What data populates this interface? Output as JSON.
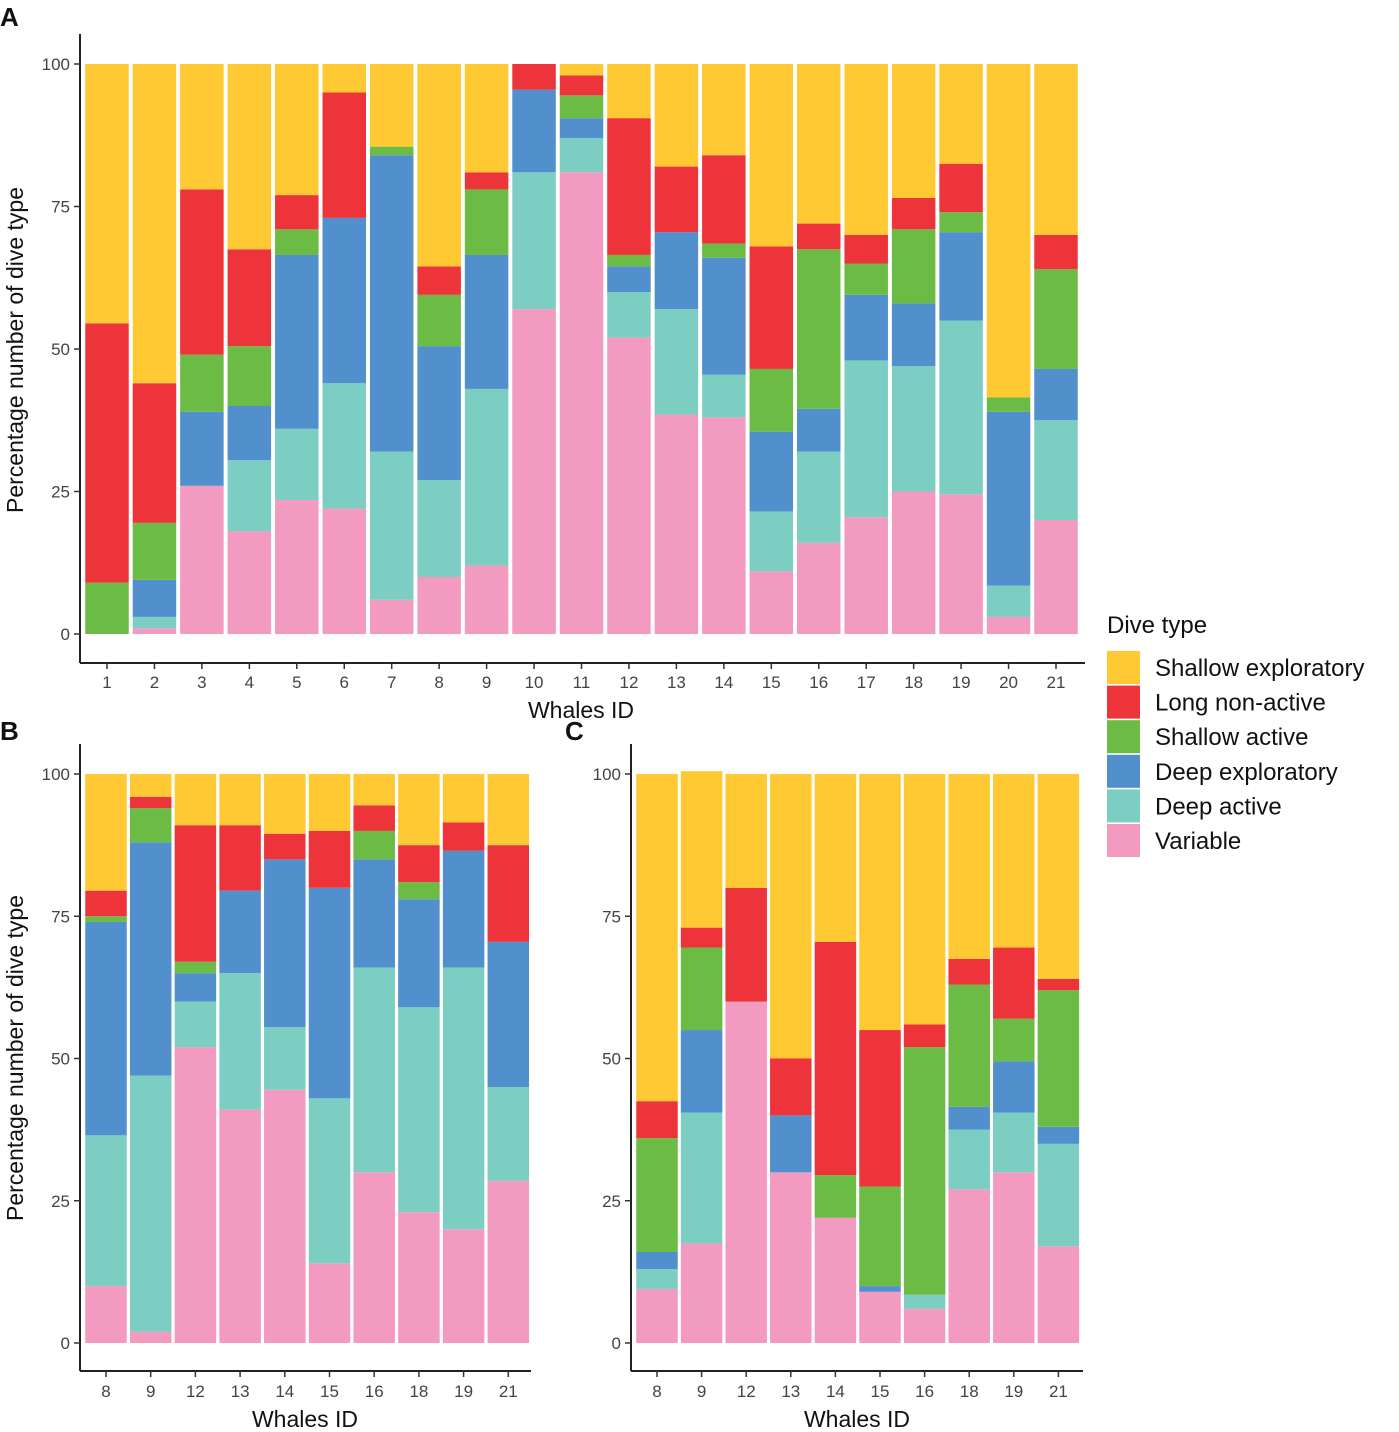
{
  "legend": {
    "title": "Dive type",
    "categories": [
      "Shallow exploratory",
      "Long non-active",
      "Shallow active",
      "Deep exploratory",
      "Deep active",
      "Variable"
    ],
    "colors": [
      "#FFC933",
      "#EE343B",
      "#6CBB44",
      "#528FCD",
      "#7CCDC2",
      "#F39AC0"
    ]
  },
  "chart_data": [
    {
      "panel": "A",
      "type": "bar",
      "stacked": true,
      "xlabel": "Whales ID",
      "ylabel": "Percentage number of dive type",
      "ylim": [
        0,
        100
      ],
      "yticks": [
        0,
        25,
        50,
        75,
        100
      ],
      "categories": [
        "1",
        "2",
        "3",
        "4",
        "5",
        "6",
        "7",
        "8",
        "9",
        "10",
        "11",
        "12",
        "13",
        "14",
        "15",
        "16",
        "17",
        "18",
        "19",
        "20",
        "21"
      ],
      "series": [
        {
          "name": "Variable",
          "values": [
            0,
            1,
            26,
            18,
            23.5,
            22,
            6,
            10,
            12,
            57,
            81,
            52,
            38.5,
            38,
            11,
            16,
            20.5,
            25,
            24.5,
            3,
            20
          ]
        },
        {
          "name": "Deep active",
          "values": [
            0,
            2,
            0,
            12.5,
            12.5,
            22,
            26,
            17,
            31,
            24,
            6,
            8,
            18.5,
            7.5,
            10.5,
            16,
            27.5,
            22,
            30.5,
            5.5,
            17.5
          ]
        },
        {
          "name": "Deep exploratory",
          "values": [
            0,
            6.5,
            13,
            9.5,
            30.5,
            29,
            52,
            23.5,
            23.5,
            14.5,
            3.5,
            4.5,
            13.5,
            20.5,
            14,
            7.5,
            11.5,
            11,
            15.5,
            30.5,
            9
          ]
        },
        {
          "name": "Shallow active",
          "values": [
            9,
            10,
            10,
            10.5,
            4.5,
            0,
            1.5,
            9,
            11.5,
            0,
            4,
            2,
            0,
            2.5,
            11,
            28,
            5.5,
            13,
            3.5,
            2.5,
            17.5
          ]
        },
        {
          "name": "Long non-active",
          "values": [
            45.5,
            24.5,
            29,
            17,
            6,
            22,
            0,
            5,
            3,
            4.5,
            3.5,
            24,
            11.5,
            15.5,
            21.5,
            4.5,
            5,
            5.5,
            8.5,
            0,
            6
          ]
        },
        {
          "name": "Shallow exploratory",
          "values": [
            45.5,
            56,
            22,
            32.5,
            23,
            5,
            14.5,
            35.5,
            19,
            0,
            2,
            9.5,
            18,
            16,
            32,
            28,
            30,
            23.5,
            17.5,
            58.5,
            30
          ]
        }
      ]
    },
    {
      "panel": "B",
      "type": "bar",
      "stacked": true,
      "xlabel": "Whales ID",
      "ylabel": "Percentage number of dive type",
      "ylim": [
        0,
        100
      ],
      "yticks": [
        0,
        25,
        50,
        75,
        100
      ],
      "categories": [
        "8",
        "9",
        "12",
        "13",
        "14",
        "15",
        "16",
        "18",
        "19",
        "21"
      ],
      "series": [
        {
          "name": "Variable",
          "values": [
            10,
            2,
            52,
            41,
            44.5,
            14,
            30,
            23,
            20,
            28.5
          ]
        },
        {
          "name": "Deep active",
          "values": [
            26.5,
            45,
            8,
            24,
            11,
            29,
            36,
            36,
            46,
            16.5
          ]
        },
        {
          "name": "Deep exploratory",
          "values": [
            37.5,
            41,
            5,
            14.5,
            29.5,
            37,
            19,
            19,
            20.5,
            25.5
          ]
        },
        {
          "name": "Shallow active",
          "values": [
            1,
            6,
            2,
            0,
            0,
            0,
            5,
            3,
            0,
            0
          ]
        },
        {
          "name": "Long non-active",
          "values": [
            4.5,
            2,
            24,
            11.5,
            4.5,
            10,
            4.5,
            6.5,
            5,
            17
          ]
        },
        {
          "name": "Shallow exploratory",
          "values": [
            20.5,
            4,
            9,
            9,
            10.5,
            10,
            5.5,
            12.5,
            8.5,
            12.5
          ]
        }
      ]
    },
    {
      "panel": "C",
      "type": "bar",
      "stacked": true,
      "xlabel": "Whales ID",
      "ylabel": "",
      "ylim": [
        0,
        100
      ],
      "yticks": [
        0,
        25,
        50,
        75,
        100
      ],
      "categories": [
        "8",
        "9",
        "12",
        "13",
        "14",
        "15",
        "16",
        "18",
        "19",
        "21"
      ],
      "series": [
        {
          "name": "Variable",
          "values": [
            9.5,
            17.5,
            60,
            30,
            22,
            9,
            6,
            27,
            30,
            17
          ]
        },
        {
          "name": "Deep active",
          "values": [
            3.5,
            23,
            0,
            0,
            0,
            0,
            2.5,
            10.5,
            10.5,
            18
          ]
        },
        {
          "name": "Deep exploratory",
          "values": [
            3,
            14.5,
            0,
            10,
            0,
            1,
            0,
            4,
            9,
            3
          ]
        },
        {
          "name": "Shallow active",
          "values": [
            20,
            14.5,
            0,
            0,
            7.5,
            17.5,
            43.5,
            21.5,
            7.5,
            24
          ]
        },
        {
          "name": "Long non-active",
          "values": [
            6.5,
            3.5,
            20,
            10,
            41,
            27.5,
            4,
            4.5,
            12.5,
            2
          ]
        },
        {
          "name": "Shallow exploratory",
          "values": [
            57.5,
            27.5,
            20,
            50,
            29.5,
            45,
            44,
            32.5,
            30.5,
            36
          ]
        }
      ]
    }
  ]
}
